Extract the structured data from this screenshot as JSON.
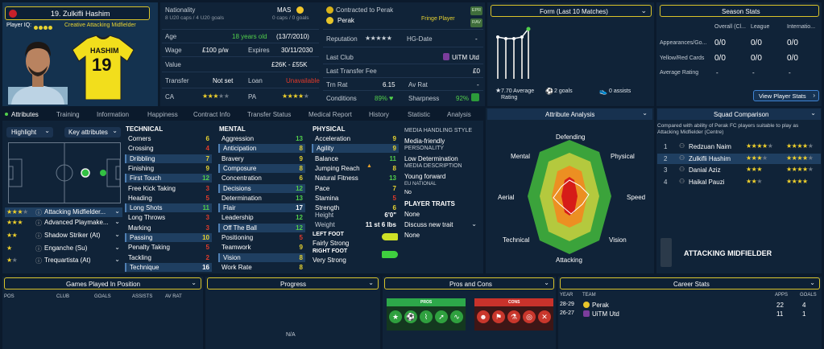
{
  "player": {
    "number_name": "19. Zulkifli Hashim",
    "iq_label": "Player IQ:",
    "role": "Creative Attacking Midfielder",
    "shirt_name": "HASHIM",
    "shirt_number": "19"
  },
  "info": {
    "nationality_label": "Nationality",
    "nationality": "MAS",
    "caps": "8 U20 caps / 4 U20 goals",
    "senior_caps": "0 caps / 0 goals",
    "age_label": "Age",
    "age": "18 years old",
    "dob": "(13/7/2010)",
    "wage_label": "Wage",
    "wage": "£100 p/w",
    "expires_label": "Expires",
    "expires": "30/11/2030",
    "value_label": "Value",
    "value": "£26K - £55K",
    "transfer_label": "Transfer",
    "transfer": "Not set",
    "loan_label": "Loan",
    "loan": "Unavailable",
    "ca_label": "CA",
    "pa_label": "PA"
  },
  "contract": {
    "label": "Contracted to Perak",
    "club": "Perak",
    "status": "Fringe Player",
    "badge1": "EPR",
    "badge2": "RAV",
    "reputation_label": "Reputation",
    "hg_label": "HG-Date",
    "hg_value": "-",
    "last_club_label": "Last Club",
    "last_club": "UiTM Utd",
    "fee_label": "Last Transfer Fee",
    "fee": "£0",
    "trn_label": "Trn Rat",
    "trn": "6.15",
    "av_label": "Av Rat",
    "av": "-",
    "cond_label": "Conditions",
    "cond": "89%",
    "sharp_label": "Sharpness",
    "sharp": "92%"
  },
  "form": {
    "title": "Form (Last 10 Matches)",
    "avg": "7.70 Average Rating",
    "goals": "2 goals",
    "assists": "0 assists"
  },
  "season": {
    "title": "Season Stats",
    "cols": [
      "Overall (Cl...",
      "League",
      "Internatio..."
    ],
    "rows": [
      {
        "label": "Appearances/Go...",
        "v": [
          "0/0",
          "0/0",
          "0/0"
        ]
      },
      {
        "label": "Yellow/Red Cards",
        "v": [
          "0/0",
          "0/0",
          "0/0"
        ]
      },
      {
        "label": "Average Rating",
        "v": [
          "-",
          "-",
          "-"
        ]
      }
    ],
    "button": "View Player Stats"
  },
  "tabs": [
    "Attributes",
    "Training",
    "Information",
    "Happiness",
    "Contract Info",
    "Transfer Status",
    "Medical Report",
    "History",
    "Statistic",
    "Analysis"
  ],
  "controls": {
    "highlight": "Highlight",
    "key_attr": "Key attributes"
  },
  "roles": [
    {
      "name": "Attacking Midfielder..."
    },
    {
      "name": "Advanced Playmake..."
    },
    {
      "name": "Shadow Striker (At)"
    },
    {
      "name": "Enganche (Su)"
    },
    {
      "name": "Trequartista (At)"
    }
  ],
  "technical": {
    "title": "TECHNICAL",
    "items": [
      {
        "n": "Corners",
        "v": "6"
      },
      {
        "n": "Crossing",
        "v": "4"
      },
      {
        "n": "Dribbling",
        "v": "7"
      },
      {
        "n": "Finishing",
        "v": "9"
      },
      {
        "n": "First Touch",
        "v": "12"
      },
      {
        "n": "Free Kick Taking",
        "v": "3"
      },
      {
        "n": "Heading",
        "v": "5"
      },
      {
        "n": "Long Shots",
        "v": "11"
      },
      {
        "n": "Long Throws",
        "v": "3"
      },
      {
        "n": "Marking",
        "v": "3"
      },
      {
        "n": "Passing",
        "v": "10"
      },
      {
        "n": "Penalty Taking",
        "v": "5"
      },
      {
        "n": "Tackling",
        "v": "2"
      },
      {
        "n": "Technique",
        "v": "16"
      }
    ]
  },
  "mental": {
    "title": "MENTAL",
    "items": [
      {
        "n": "Aggression",
        "v": "13"
      },
      {
        "n": "Anticipation",
        "v": "8"
      },
      {
        "n": "Bravery",
        "v": "9"
      },
      {
        "n": "Composure",
        "v": "8"
      },
      {
        "n": "Concentration",
        "v": "6"
      },
      {
        "n": "Decisions",
        "v": "12"
      },
      {
        "n": "Determination",
        "v": "13"
      },
      {
        "n": "Flair",
        "v": "17"
      },
      {
        "n": "Leadership",
        "v": "12"
      },
      {
        "n": "Off The Ball",
        "v": "12"
      },
      {
        "n": "Positioning",
        "v": "5"
      },
      {
        "n": "Teamwork",
        "v": "9"
      },
      {
        "n": "Vision",
        "v": "8"
      },
      {
        "n": "Work Rate",
        "v": "8"
      }
    ]
  },
  "physical": {
    "title": "PHYSICAL",
    "items": [
      {
        "n": "Acceleration",
        "v": "9"
      },
      {
        "n": "Agility",
        "v": "9"
      },
      {
        "n": "Balance",
        "v": "11"
      },
      {
        "n": "Jumping Reach",
        "v": "8"
      },
      {
        "n": "Natural Fitness",
        "v": "13"
      },
      {
        "n": "Pace",
        "v": "7"
      },
      {
        "n": "Stamina",
        "v": "5"
      },
      {
        "n": "Strength",
        "v": "6"
      }
    ],
    "height_label": "Height",
    "height": "6'0\"",
    "weight_label": "Weight",
    "weight": "11 st 6 lbs",
    "left_foot_label": "LEFT FOOT",
    "left_foot": "Fairly Strong",
    "right_foot_label": "RIGHT FOOT",
    "right_foot": "Very Strong"
  },
  "media": {
    "style_label": "MEDIA HANDLING STYLE",
    "style": "Media-friendly",
    "personality_label": "PERSONALITY",
    "personality": "Low Determination",
    "desc_label": "MEDIA DESCRIPTION",
    "desc": "Young forward",
    "eu_label": "EU NATIONAL",
    "eu": "No",
    "traits_label": "PLAYER TRAITS",
    "traits": "None",
    "discuss": "Discuss new trait",
    "traits2": "None"
  },
  "analysis": {
    "title": "Attribute Analysis",
    "labels": [
      "Defending",
      "Physical",
      "Speed",
      "Vision",
      "Attacking",
      "Technical",
      "Aerial",
      "Mental"
    ]
  },
  "squad": {
    "title": "Squad Comparison",
    "desc": "Compared with ability of Perak FC players suitable to play as Attacking Midfielder (Centre)",
    "rows": [
      {
        "rank": "1",
        "name": "Redzuan Naim"
      },
      {
        "rank": "2",
        "name": "Zulkifli Hashim"
      },
      {
        "rank": "3",
        "name": "Danial Aziz"
      },
      {
        "rank": "4",
        "name": "Haikal Pauzi"
      }
    ],
    "position": "ATTACKING MIDFIELDER"
  },
  "bottom": {
    "games_title": "Games Played In Position",
    "games_cols": [
      "POS",
      "CLUB",
      "GOALS",
      "ASSISTS",
      "AV RAT"
    ],
    "progress_title": "Progress",
    "progress_na": "N/A",
    "pros_title": "Pros and Cons",
    "pros": "PROS",
    "cons": "CONS",
    "career_title": "Career Stats",
    "career_cols": [
      "YEAR",
      "TEAM",
      "APPS",
      "GOALS"
    ],
    "career_rows": [
      {
        "year": "28-29",
        "team": "Perak",
        "apps": "22",
        "goals": "4"
      },
      {
        "year": "26-27",
        "team": "UiTM Utd",
        "apps": "11",
        "goals": "1"
      }
    ]
  }
}
